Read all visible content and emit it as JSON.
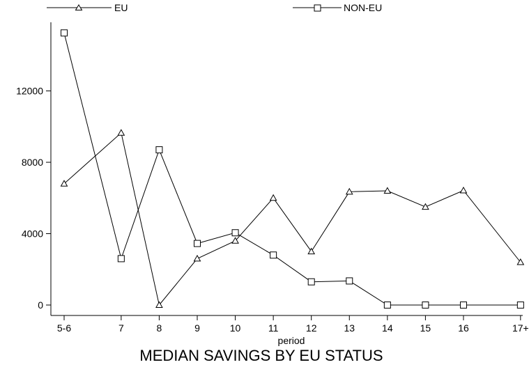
{
  "chart_data": {
    "type": "line",
    "title": "MEDIAN SAVINGS BY EU STATUS",
    "xlabel": "period",
    "ylabel": "",
    "categories": [
      "5-6",
      "7",
      "8",
      "9",
      "10",
      "11",
      "12",
      "13",
      "14",
      "15",
      "16",
      "17+"
    ],
    "x": [
      5.5,
      7,
      8,
      9,
      10,
      11,
      12,
      13,
      14,
      15,
      16,
      17.5
    ],
    "yticks": [
      0,
      4000,
      8000,
      12000
    ],
    "ylim": [
      -500,
      15800
    ],
    "grid": false,
    "legend_placement": "top",
    "series": [
      {
        "name": "EU",
        "marker": "triangle",
        "values": [
          6800,
          9650,
          0,
          2600,
          3600,
          6000,
          3000,
          6350,
          6400,
          5500,
          6420,
          2400
        ]
      },
      {
        "name": "NON-EU",
        "marker": "square",
        "values": [
          15250,
          2600,
          8700,
          3450,
          4050,
          2800,
          1300,
          1350,
          0,
          0,
          0,
          0
        ]
      }
    ]
  }
}
